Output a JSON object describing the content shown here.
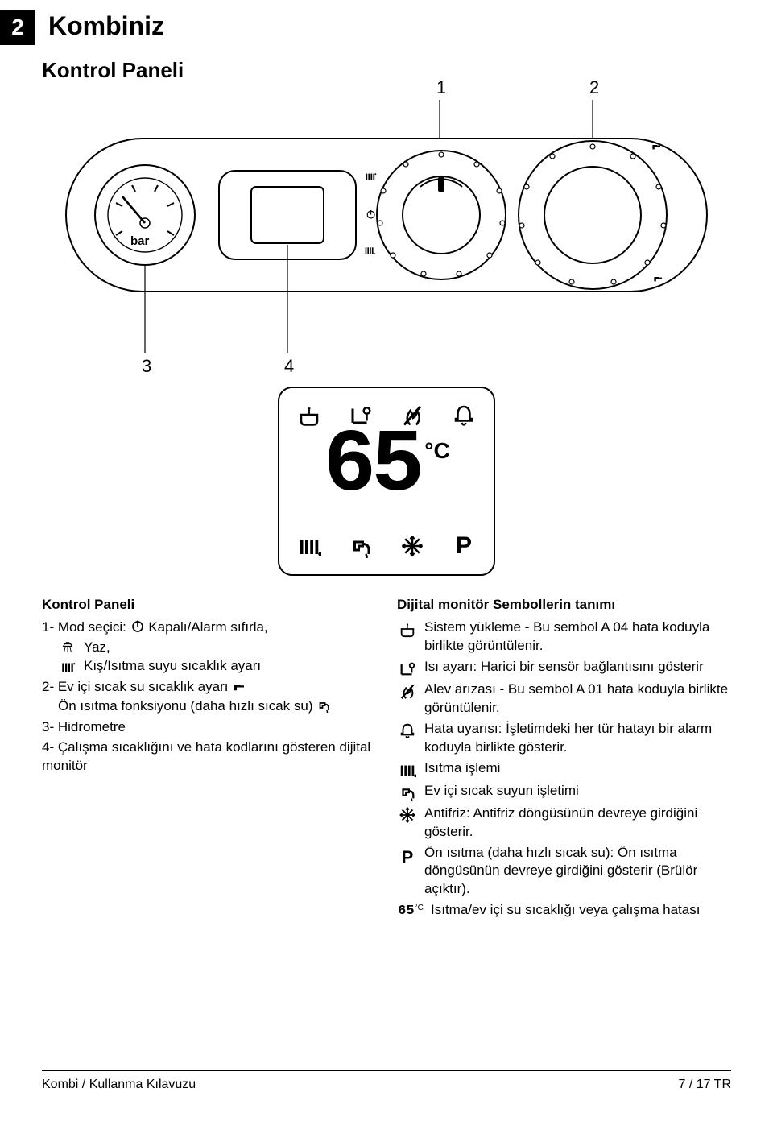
{
  "page_number": "2",
  "chapter_title": "Kombiniz",
  "section_title": "Kontrol Paneli",
  "panel": {
    "callouts": {
      "c1": "1",
      "c2": "2",
      "c3": "3",
      "c4": "4"
    },
    "gauge_label": "bar"
  },
  "monitor": {
    "value": "65",
    "unit": "°C",
    "p_symbol": "P"
  },
  "left_column": {
    "title": "Kontrol Paneli",
    "line1_prefix": "1- Mod seçici: ",
    "line1_suffix": " Kapalı/Alarm sıfırla,",
    "yaz": " Yaz,",
    "kis": "Kış/Isıtma suyu sıcaklık ayarı",
    "line2_prefix": "2- Ev içi sıcak su sıcaklık ayarı ",
    "line2b_prefix": "Ön ısıtma fonksiyonu (daha hızlı sıcak su) ",
    "line3": "3- Hidrometre",
    "line4": "4- Çalışma sıcaklığını ve hata kodlarını gösteren dijital monitör"
  },
  "right_column": {
    "title": "Dijital monitör Sembollerin tanımı",
    "items": [
      {
        "icon": "bathtub",
        "text": "Sistem yükleme - Bu sembol A 04 hata koduyla birlikte görüntülenir."
      },
      {
        "icon": "temp_adj",
        "text": "Isı ayarı: Harici bir sensör bağlantısını gösterir"
      },
      {
        "icon": "flame_fault",
        "text": "Alev arızası - Bu sembol A 01 hata koduyla birlikte görüntülenir."
      },
      {
        "icon": "bell",
        "text": "Hata uyarısı: İşletimdeki her tür hatayı bir alarm koduyla birlikte gösterir."
      },
      {
        "icon": "radiator",
        "text": "Isıtma işlemi"
      },
      {
        "icon": "faucet",
        "text": "Ev içi sıcak suyun işletimi"
      },
      {
        "icon": "snowflake",
        "text": "Antifriz: Antifriz döngüsünün devreye girdiğini gösterir."
      },
      {
        "icon": "p_symbol",
        "text": "Ön ısıtma (daha hızlı sıcak su): Ön ısıtma döngüsünün devreye girdiğini gösterir (Brülör açıktır)."
      },
      {
        "icon": "seg65",
        "text": "Isıtma/ev içi su sıcaklığı veya çalışma hatası"
      }
    ]
  },
  "footer": {
    "left": "Kombi / Kullanma Kılavuzu",
    "right": "7 / 17 TR"
  },
  "colors": {
    "black": "#000000",
    "white": "#ffffff"
  }
}
